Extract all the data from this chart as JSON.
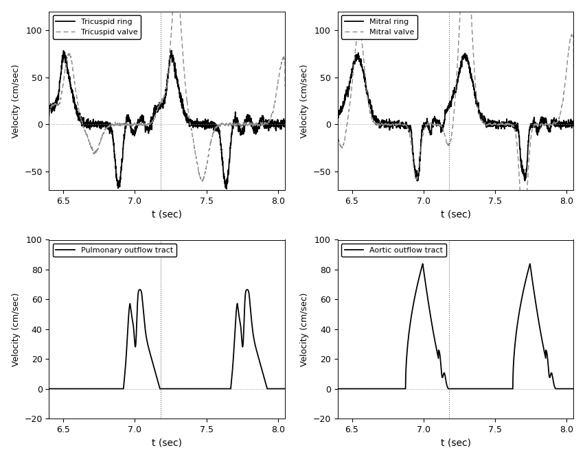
{
  "subplots": [
    {
      "legend": [
        "Tricuspid ring",
        "Tricuspid valve"
      ],
      "ylabel": "Velocity (cm/sec)",
      "xlabel": "t (sec)",
      "xlim": [
        6.4,
        8.05
      ],
      "ylim": [
        -70,
        120
      ],
      "yticks": [
        -50,
        0,
        50,
        100
      ],
      "xticks": [
        6.5,
        7.0,
        7.5,
        8.0
      ],
      "vline_x": 7.18
    },
    {
      "legend": [
        "Mitral ring",
        "Mitral valve"
      ],
      "ylabel": "Velocity (cm/sec)",
      "xlabel": "t (sec)",
      "xlim": [
        6.4,
        8.05
      ],
      "ylim": [
        -70,
        120
      ],
      "yticks": [
        -50,
        0,
        50,
        100
      ],
      "xticks": [
        6.5,
        7.0,
        7.5,
        8.0
      ],
      "vline_x": 7.18
    },
    {
      "legend": [
        "Pulmonary outflow tract"
      ],
      "ylabel": "Velocity (cm/sec)",
      "xlabel": "t (sec)",
      "xlim": [
        6.4,
        8.05
      ],
      "ylim": [
        -20,
        100
      ],
      "yticks": [
        -20,
        0,
        20,
        40,
        60,
        80,
        100
      ],
      "xticks": [
        6.5,
        7.0,
        7.5,
        8.0
      ],
      "vline_x": 7.18
    },
    {
      "legend": [
        "Aortic outflow tract"
      ],
      "ylabel": "Velocity (cm/sec)",
      "xlabel": "t (sec)",
      "xlim": [
        6.4,
        8.05
      ],
      "ylim": [
        -20,
        100
      ],
      "yticks": [
        -20,
        0,
        20,
        40,
        60,
        80,
        100
      ],
      "xticks": [
        6.5,
        7.0,
        7.5,
        8.0
      ],
      "vline_x": 7.18
    }
  ],
  "background_color": "#ffffff",
  "line_color_solid": "#000000",
  "line_color_dashed": "#888888",
  "vline_color": "#666666",
  "hline_color": "#999999"
}
